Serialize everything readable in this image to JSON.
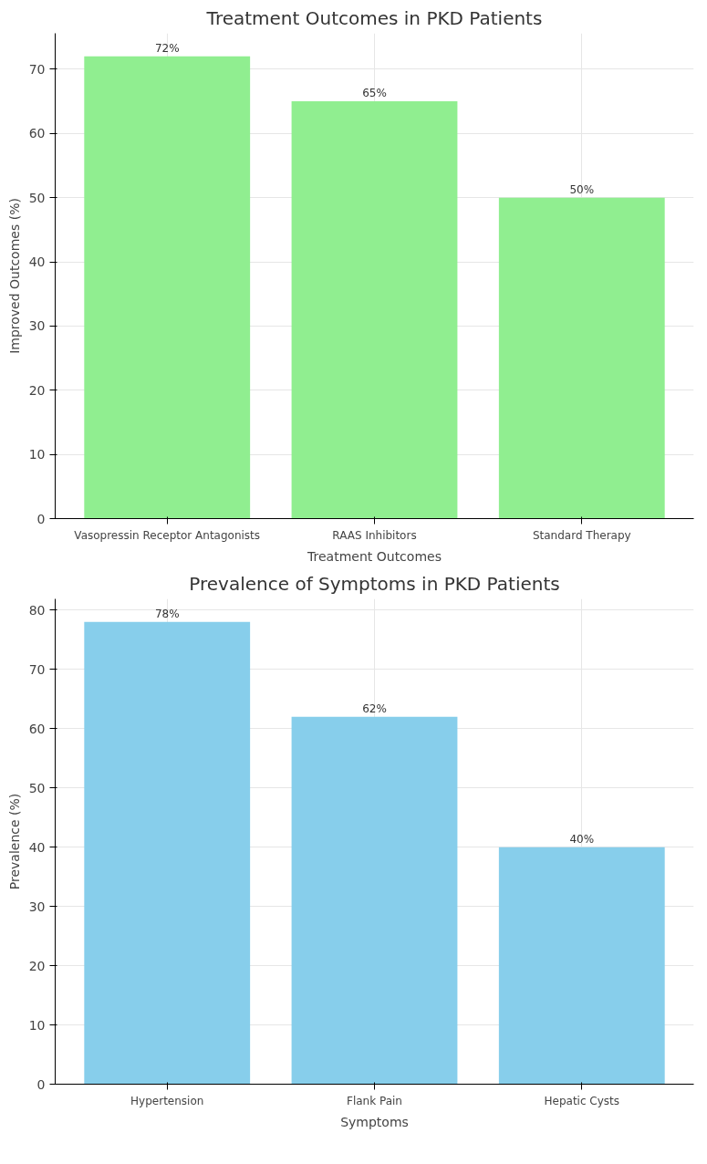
{
  "chart_data": [
    {
      "type": "bar",
      "title": "Treatment Outcomes in PKD Patients",
      "xlabel": "Treatment Outcomes",
      "ylabel": "Improved Outcomes (%)",
      "categories": [
        "Vasopressin Receptor Antagonists",
        "RAAS Inhibitors",
        "Standard Therapy"
      ],
      "values": [
        72,
        65,
        50
      ],
      "value_labels": [
        "72%",
        "65%",
        "50%"
      ],
      "color": "#90ee90",
      "ylim": [
        0,
        75.6
      ],
      "yticks": [
        0,
        10,
        20,
        30,
        40,
        50,
        60,
        70
      ],
      "grid": true
    },
    {
      "type": "bar",
      "title": "Prevalence of Symptoms in PKD Patients",
      "xlabel": "Symptoms",
      "ylabel": "Prevalence (%)",
      "categories": [
        "Hypertension",
        "Flank Pain",
        "Hepatic Cysts"
      ],
      "values": [
        78,
        62,
        40
      ],
      "value_labels": [
        "78%",
        "62%",
        "40%"
      ],
      "color": "#87ceeb",
      "ylim": [
        0,
        81.9
      ],
      "yticks": [
        0,
        10,
        20,
        30,
        40,
        50,
        60,
        70,
        80
      ],
      "grid": true
    }
  ]
}
